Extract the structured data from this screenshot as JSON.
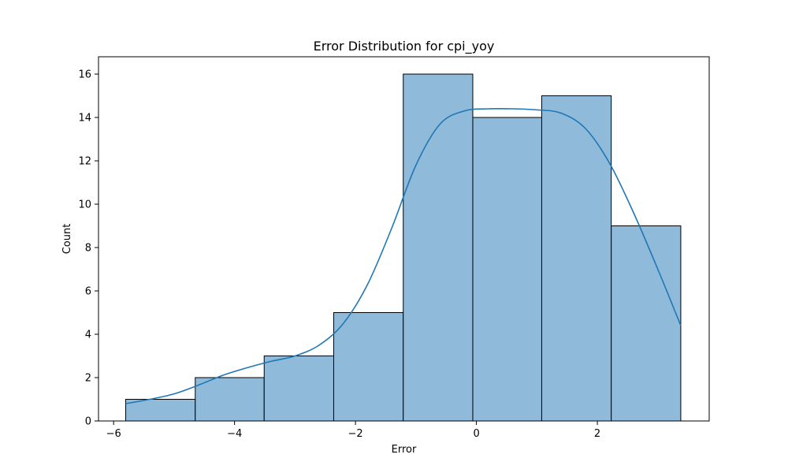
{
  "chart_data": {
    "type": "bar",
    "subtype": "histogram-with-kde",
    "title": "Error Distribution for cpi_yoy",
    "xlabel": "Error",
    "ylabel": "Count",
    "xlim": [
      -6.25,
      3.85
    ],
    "ylim": [
      0,
      16.8
    ],
    "xticks": [
      -6,
      -4,
      -2,
      0,
      2
    ],
    "xtick_labels": [
      "−6",
      "−4",
      "−2",
      "0",
      "2"
    ],
    "yticks": [
      0,
      2,
      4,
      6,
      8,
      10,
      12,
      14,
      16
    ],
    "ytick_labels": [
      "0",
      "2",
      "4",
      "6",
      "8",
      "10",
      "12",
      "14",
      "16"
    ],
    "bins": [
      {
        "x0": -5.8,
        "x1": -4.65,
        "count": 1
      },
      {
        "x0": -4.65,
        "x1": -3.51,
        "count": 2
      },
      {
        "x0": -3.51,
        "x1": -2.36,
        "count": 3
      },
      {
        "x0": -2.36,
        "x1": -1.21,
        "count": 5
      },
      {
        "x0": -1.21,
        "x1": -0.06,
        "count": 16
      },
      {
        "x0": -0.06,
        "x1": 1.08,
        "count": 14
      },
      {
        "x0": 1.08,
        "x1": 2.23,
        "count": 15
      },
      {
        "x0": 2.23,
        "x1": 3.38,
        "count": 9
      }
    ],
    "kde": {
      "x": [
        -5.8,
        -5.4,
        -5.0,
        -4.6,
        -4.2,
        -3.8,
        -3.4,
        -3.0,
        -2.6,
        -2.2,
        -1.8,
        -1.4,
        -1.0,
        -0.6,
        -0.2,
        0.2,
        0.6,
        1.0,
        1.4,
        1.8,
        2.2,
        2.6,
        3.0,
        3.38
      ],
      "y": [
        0.8,
        1.0,
        1.25,
        1.65,
        2.1,
        2.45,
        2.75,
        3.0,
        3.5,
        4.5,
        6.3,
        8.9,
        11.8,
        13.7,
        14.3,
        14.4,
        14.4,
        14.35,
        14.2,
        13.5,
        11.9,
        9.6,
        7.0,
        4.4
      ]
    },
    "colors": {
      "bar_fill": "#8fbada",
      "bar_edge": "#000000",
      "kde_line": "#1f77b4"
    },
    "grid": false,
    "legend": "none"
  }
}
